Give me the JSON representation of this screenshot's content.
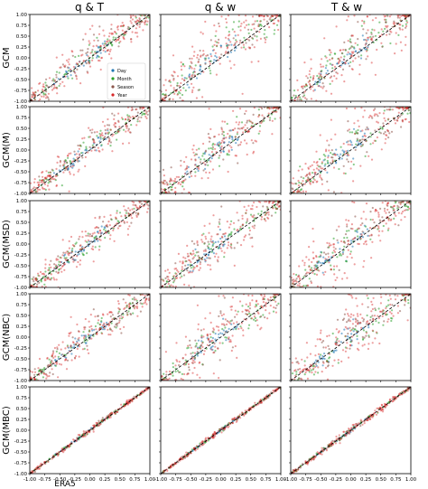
{
  "figure": {
    "columns": [
      "q & T",
      "q & w",
      "T & w"
    ],
    "rows": [
      "GCM",
      "GCM(M)",
      "GCM(MSD)",
      "GCM(NBC)",
      "GCM(MBC)"
    ],
    "xlabel": "ERA5"
  },
  "chart_data": {
    "type": "scatter",
    "layout_rows": 5,
    "layout_cols": 3,
    "xlim": [
      -1.0,
      1.0
    ],
    "ylim": [
      -1.0,
      1.0
    ],
    "x_ticks": [
      "-1.00",
      "-0.75",
      "-0.50",
      "-0.25",
      "0.00",
      "0.25",
      "0.50",
      "0.75",
      "1.00"
    ],
    "y_ticks": [
      "-1.00",
      "-0.75",
      "-0.50",
      "-0.25",
      "0.00",
      "0.25",
      "0.50",
      "0.75",
      "1.00"
    ],
    "legend": {
      "location": "lower right of top-left panel",
      "entries": [
        "Day",
        "Month",
        "Season",
        "Year"
      ]
    },
    "series_colors": {
      "Day": "#1f77b4",
      "Month": "#2ca02c",
      "Season": "#8c564b",
      "Year": "#d62728"
    },
    "reference_line": "y = x (dashed)",
    "panels": [
      {
        "row": "GCM",
        "col": "q & T",
        "spread": 0.22,
        "bias": 0.12
      },
      {
        "row": "GCM",
        "col": "q & w",
        "spread": 0.35,
        "bias": 0.3
      },
      {
        "row": "GCM",
        "col": "T & w",
        "spread": 0.35,
        "bias": 0.25
      },
      {
        "row": "GCM(M)",
        "col": "q & T",
        "spread": 0.22,
        "bias": 0.12
      },
      {
        "row": "GCM(M)",
        "col": "q & w",
        "spread": 0.3,
        "bias": 0.2
      },
      {
        "row": "GCM(M)",
        "col": "T & w",
        "spread": 0.32,
        "bias": 0.15
      },
      {
        "row": "GCM(MSD)",
        "col": "q & T",
        "spread": 0.22,
        "bias": 0.1
      },
      {
        "row": "GCM(MSD)",
        "col": "q & w",
        "spread": 0.3,
        "bias": 0.15
      },
      {
        "row": "GCM(MSD)",
        "col": "T & w",
        "spread": 0.32,
        "bias": 0.12
      },
      {
        "row": "GCM(NBC)",
        "col": "q & T",
        "spread": 0.22,
        "bias": 0.1
      },
      {
        "row": "GCM(NBC)",
        "col": "q & w",
        "spread": 0.32,
        "bias": 0.15
      },
      {
        "row": "GCM(NBC)",
        "col": "T & w",
        "spread": 0.32,
        "bias": 0.1
      },
      {
        "row": "GCM(MBC)",
        "col": "q & T",
        "spread": 0.03,
        "bias": 0.0
      },
      {
        "row": "GCM(MBC)",
        "col": "q & w",
        "spread": 0.03,
        "bias": 0.0
      },
      {
        "row": "GCM(MBC)",
        "col": "T & w",
        "spread": 0.04,
        "bias": 0.0
      }
    ]
  }
}
